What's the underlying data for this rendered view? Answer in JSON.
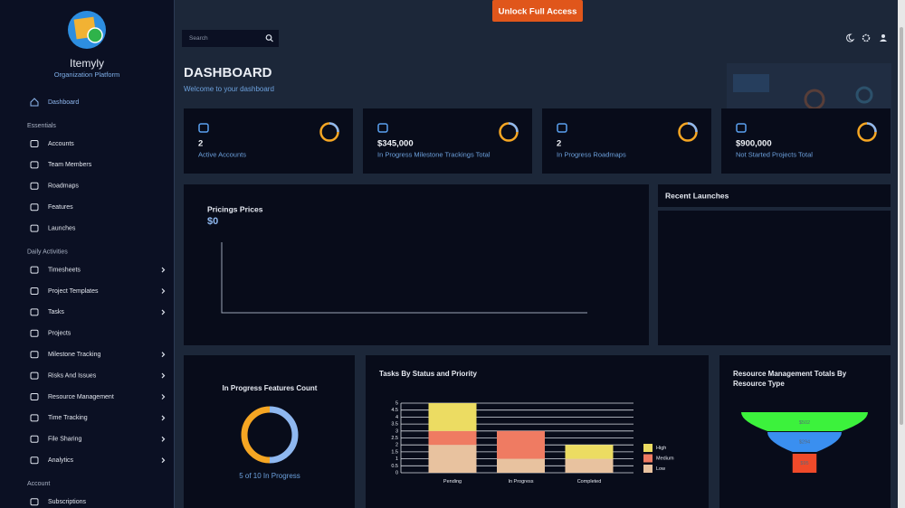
{
  "header": {
    "cta": "Unlock Full Access",
    "search_placeholder": "Search"
  },
  "sidebar": {
    "brand": "Itemyly",
    "tagline": "Organization Platform",
    "active": "Dashboard",
    "sections": [
      {
        "title": "Essentials",
        "items": [
          {
            "label": "Accounts",
            "expandable": false
          },
          {
            "label": "Team Members",
            "expandable": false
          },
          {
            "label": "Roadmaps",
            "expandable": false
          },
          {
            "label": "Features",
            "expandable": false
          },
          {
            "label": "Launches",
            "expandable": false
          }
        ]
      },
      {
        "title": "Daily Activities",
        "items": [
          {
            "label": "Timesheets",
            "expandable": true
          },
          {
            "label": "Project Templates",
            "expandable": true
          },
          {
            "label": "Tasks",
            "expandable": true
          },
          {
            "label": "Projects",
            "expandable": false
          },
          {
            "label": "Milestone Tracking",
            "expandable": true
          },
          {
            "label": "Risks And Issues",
            "expandable": true
          },
          {
            "label": "Resource Management",
            "expandable": true
          },
          {
            "label": "Time Tracking",
            "expandable": true
          },
          {
            "label": "File Sharing",
            "expandable": true
          },
          {
            "label": "Analytics",
            "expandable": true
          }
        ]
      },
      {
        "title": "Account",
        "items": [
          {
            "label": "Subscriptions",
            "expandable": false
          }
        ]
      }
    ]
  },
  "page": {
    "title": "DASHBOARD",
    "subtitle": "Welcome to your dashboard"
  },
  "stats": [
    {
      "value": "2",
      "label": "Active Accounts"
    },
    {
      "value": "$345,000",
      "label": "In Progress Milestone Trackings Total"
    },
    {
      "value": "2",
      "label": "In Progress Roadmaps"
    },
    {
      "value": "$900,000",
      "label": "Not Started Projects Total"
    }
  ],
  "pricing": {
    "title": "Pricings Prices",
    "value": "$0"
  },
  "recent_launches": {
    "title": "Recent Launches"
  },
  "features_donut": {
    "type": "pie",
    "title": "In Progress Features Count",
    "label": "5 of 10 In Progress",
    "values": [
      5,
      5
    ],
    "colors": [
      "#8fb8f0",
      "#f5a623"
    ]
  },
  "tasks_chart": {
    "type": "bar",
    "title": "Tasks By Status and Priority",
    "stacked": true,
    "categories": [
      "Pending",
      "In Progress",
      "Completed"
    ],
    "series": [
      {
        "name": "Low",
        "color": "#e8c29f",
        "values": [
          2,
          1,
          1
        ]
      },
      {
        "name": "Medium",
        "color": "#ef7b62",
        "values": [
          1,
          2,
          0
        ]
      },
      {
        "name": "High",
        "color": "#ecdc62",
        "values": [
          2,
          0,
          1
        ]
      }
    ],
    "ylim": [
      0,
      5
    ],
    "yticks": [
      0,
      0.5,
      1,
      1.5,
      2,
      2.5,
      3,
      3.5,
      4,
      4.5,
      5
    ],
    "grid": true
  },
  "resource_funnel": {
    "type": "funnel",
    "title": "Resource Management Totals By Resource Type",
    "values": [
      502,
      294,
      95
    ],
    "value_labels": [
      "$502",
      "$294",
      "$95"
    ],
    "colors": [
      "#3cf23c",
      "#3a8ff0",
      "#f04a2a"
    ]
  }
}
